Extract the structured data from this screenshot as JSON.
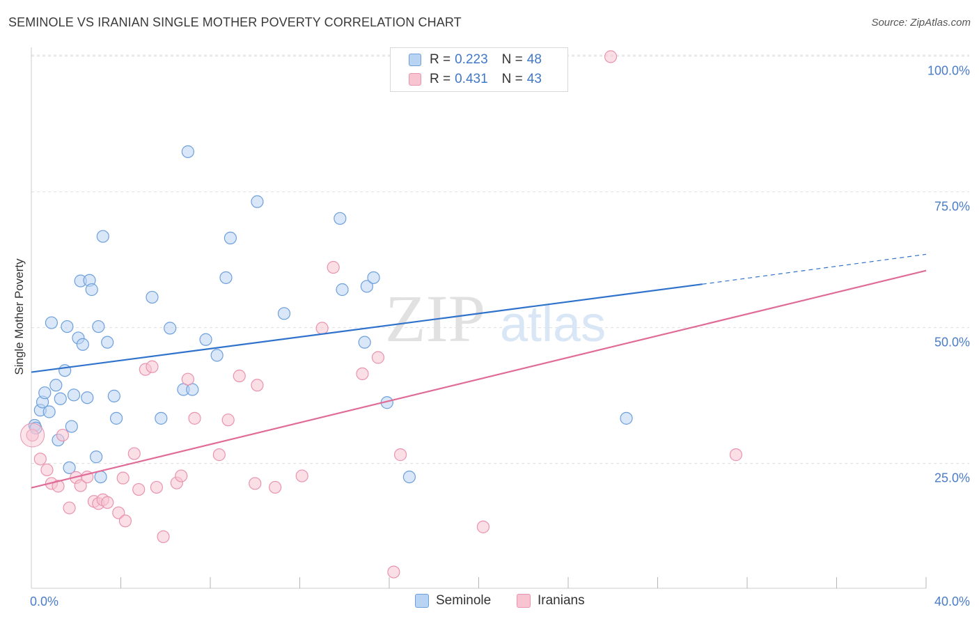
{
  "header": {
    "title": "SEMINOLE VS IRANIAN SINGLE MOTHER POVERTY CORRELATION CHART",
    "source": "Source: ZipAtlas.com"
  },
  "legend": {
    "rows": [
      {
        "r_label": "R =",
        "r_value": "0.223",
        "n_label": "N =",
        "n_value": "48"
      },
      {
        "r_label": "R =",
        "r_value": "0.431",
        "n_label": "N =",
        "n_value": "43"
      }
    ]
  },
  "bottom_legend": {
    "seminole": "Seminole",
    "iranians": "Iranians"
  },
  "watermark": {
    "zip": "ZIP",
    "atlas": "atlas"
  },
  "colors": {
    "seminole_fill": "#b9d3f3",
    "seminole_stroke": "#6d9fdc",
    "seminole_line": "#2f72cc",
    "iranians_fill": "#f8c4d2",
    "iranians_stroke": "#e993ae",
    "iranians_line": "#e06b96",
    "axis_label": "#4a7cc7",
    "grid": "#dddddd"
  },
  "chart_data": {
    "type": "scatter",
    "title": "SEMINOLE VS IRANIAN SINGLE MOTHER POVERTY CORRELATION CHART",
    "xlabel": "",
    "ylabel": "Single Mother Poverty",
    "xlim": [
      0,
      40
    ],
    "ylim": [
      2,
      102
    ],
    "x_tick_labels": [
      {
        "value": 0,
        "label": "0.0%"
      },
      {
        "value": 40,
        "label": "40.0%"
      }
    ],
    "x_minor_ticks": [
      4,
      8,
      12,
      16,
      20,
      24,
      28,
      32,
      36,
      40
    ],
    "y_ticks": [
      {
        "value": 25,
        "label": "25.0%"
      },
      {
        "value": 50,
        "label": "50.0%"
      },
      {
        "value": 75,
        "label": "75.0%"
      },
      {
        "value": 100,
        "label": "100.0%"
      }
    ],
    "grid": "horizontal dashed",
    "legend_position": "top-center",
    "series": [
      {
        "name": "Seminole",
        "r": 0.223,
        "n": 48,
        "trend": {
          "x0": 0,
          "y0": 41.8,
          "x1": 30.0,
          "y1": 58.0,
          "dash_to_x": 40,
          "dash_to_y": 63.5
        },
        "points": [
          [
            0.15,
            32.0
          ],
          [
            0.2,
            31.5
          ],
          [
            0.4,
            34.8
          ],
          [
            0.5,
            36.3
          ],
          [
            0.6,
            38.0
          ],
          [
            0.8,
            34.5
          ],
          [
            0.9,
            50.9
          ],
          [
            1.1,
            39.4
          ],
          [
            1.2,
            29.3
          ],
          [
            1.3,
            36.9
          ],
          [
            1.5,
            42.1
          ],
          [
            1.6,
            50.2
          ],
          [
            1.7,
            24.2
          ],
          [
            1.8,
            31.8
          ],
          [
            1.9,
            37.6
          ],
          [
            2.1,
            48.1
          ],
          [
            2.2,
            58.6
          ],
          [
            2.3,
            46.9
          ],
          [
            2.5,
            37.1
          ],
          [
            2.6,
            58.7
          ],
          [
            2.7,
            57.0
          ],
          [
            2.9,
            26.2
          ],
          [
            3.0,
            50.2
          ],
          [
            3.1,
            22.5
          ],
          [
            3.2,
            66.8
          ],
          [
            3.4,
            47.3
          ],
          [
            3.7,
            37.4
          ],
          [
            3.8,
            33.3
          ],
          [
            5.4,
            55.6
          ],
          [
            5.8,
            33.3
          ],
          [
            6.2,
            49.9
          ],
          [
            6.8,
            38.6
          ],
          [
            7.0,
            82.4
          ],
          [
            7.2,
            38.6
          ],
          [
            7.8,
            47.8
          ],
          [
            8.3,
            44.9
          ],
          [
            8.7,
            59.2
          ],
          [
            8.9,
            66.5
          ],
          [
            10.1,
            73.2
          ],
          [
            11.3,
            52.6
          ],
          [
            13.8,
            70.1
          ],
          [
            13.9,
            57.0
          ],
          [
            14.9,
            47.3
          ],
          [
            15.0,
            57.6
          ],
          [
            15.3,
            59.2
          ],
          [
            15.9,
            36.2
          ],
          [
            16.9,
            22.5
          ],
          [
            26.6,
            33.3
          ]
        ]
      },
      {
        "name": "Iranians",
        "r": 0.431,
        "n": 43,
        "trend": {
          "x0": 0,
          "y0": 20.5,
          "x1": 40,
          "y1": 60.5
        },
        "points": [
          [
            0.05,
            30.2
          ],
          [
            0.4,
            25.8
          ],
          [
            0.7,
            23.8
          ],
          [
            0.9,
            21.3
          ],
          [
            1.2,
            20.8
          ],
          [
            1.4,
            30.2
          ],
          [
            1.7,
            16.8
          ],
          [
            2.0,
            22.4
          ],
          [
            2.2,
            20.9
          ],
          [
            2.5,
            22.5
          ],
          [
            2.8,
            18.0
          ],
          [
            3.0,
            17.6
          ],
          [
            3.2,
            18.3
          ],
          [
            3.4,
            17.8
          ],
          [
            3.9,
            15.9
          ],
          [
            4.1,
            22.3
          ],
          [
            4.2,
            14.4
          ],
          [
            4.6,
            26.8
          ],
          [
            4.8,
            20.2
          ],
          [
            5.1,
            42.3
          ],
          [
            5.4,
            42.8
          ],
          [
            5.6,
            20.6
          ],
          [
            5.9,
            11.5
          ],
          [
            6.5,
            21.4
          ],
          [
            6.7,
            22.7
          ],
          [
            7.0,
            40.5
          ],
          [
            7.3,
            33.3
          ],
          [
            8.4,
            26.6
          ],
          [
            8.8,
            33.0
          ],
          [
            9.3,
            41.1
          ],
          [
            10.0,
            21.3
          ],
          [
            10.1,
            39.4
          ],
          [
            10.9,
            20.6
          ],
          [
            12.1,
            22.7
          ],
          [
            13.0,
            49.9
          ],
          [
            13.5,
            61.1
          ],
          [
            14.8,
            41.5
          ],
          [
            15.5,
            44.5
          ],
          [
            16.2,
            5.0
          ],
          [
            16.5,
            26.6
          ],
          [
            20.2,
            13.3
          ],
          [
            25.9,
            99.9
          ],
          [
            31.5,
            26.6
          ]
        ]
      }
    ]
  }
}
